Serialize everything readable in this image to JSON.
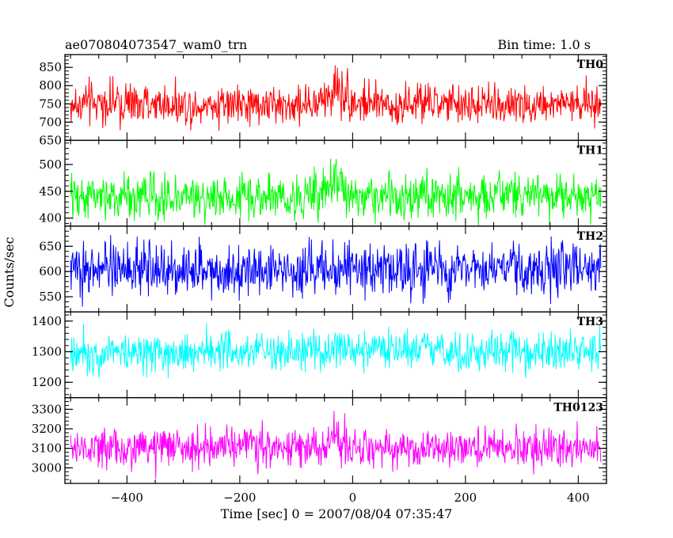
{
  "header": {
    "left_title": "ae070804073547_wam0_trn",
    "right_title": "Bin time: 1.0 s"
  },
  "chart_data": {
    "type": "line",
    "xlabel": "Time [sec] 0 = 2007/08/04 07:35:47",
    "ylabel": "Counts/sec",
    "xlim": [
      -510,
      450
    ],
    "x_range_data": [
      -500,
      440
    ],
    "x_ticks": [
      -400,
      -200,
      0,
      200,
      400
    ],
    "x_tick_labels": [
      "−400",
      "−200",
      "0",
      "200",
      "400"
    ],
    "bin_time_s": 1.0,
    "panels": [
      {
        "name": "TH0",
        "color": "#ff0000",
        "ylim": [
          650,
          885
        ],
        "y_ticks": [
          650,
          700,
          750,
          800,
          850
        ],
        "y_tick_labels": [
          "650",
          "700",
          "750",
          "800",
          "850"
        ],
        "mean": 748,
        "noise_amplitude": 38,
        "bursts": [
          {
            "t": -25,
            "peak": 60,
            "width": 15
          }
        ]
      },
      {
        "name": "TH1",
        "color": "#00ff00",
        "ylim": [
          385,
          545
        ],
        "y_ticks": [
          400,
          450,
          500
        ],
        "y_tick_labels": [
          "400",
          "450",
          "500"
        ],
        "mean": 440,
        "noise_amplitude": 28,
        "bursts": [
          {
            "t": -35,
            "peak": 55,
            "width": 14
          }
        ]
      },
      {
        "name": "TH2",
        "color": "#0000ff",
        "ylim": [
          520,
          690
        ],
        "y_ticks": [
          550,
          600,
          650
        ],
        "y_tick_labels": [
          "550",
          "600",
          "650"
        ],
        "mean": 605,
        "noise_amplitude": 35,
        "bursts": []
      },
      {
        "name": "TH3",
        "color": "#00ffff",
        "ylim": [
          1150,
          1430
        ],
        "y_ticks": [
          1200,
          1300,
          1400
        ],
        "y_tick_labels": [
          "1200",
          "1300",
          "1400"
        ],
        "mean": 1300,
        "noise_amplitude": 45,
        "bursts": []
      },
      {
        "name": "TH0123",
        "color": "#ff00ff",
        "ylim": [
          2920,
          3360
        ],
        "y_ticks": [
          3000,
          3100,
          3200,
          3300
        ],
        "y_tick_labels": [
          "3000",
          "3100",
          "3200",
          "3300"
        ],
        "mean": 3100,
        "noise_amplitude": 70,
        "bursts": [
          {
            "t": -30,
            "peak": 130,
            "width": 12
          }
        ]
      }
    ]
  }
}
